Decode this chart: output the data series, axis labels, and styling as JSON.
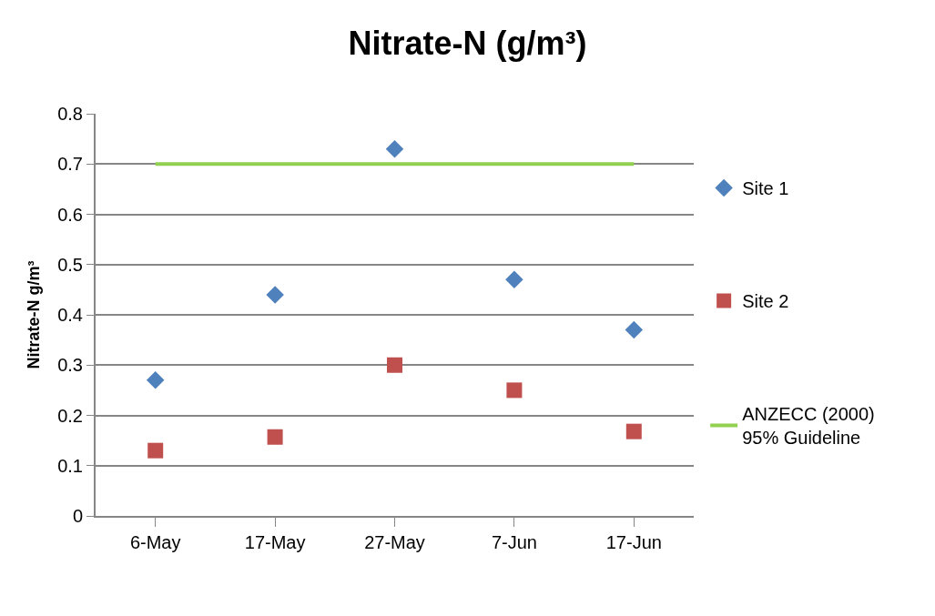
{
  "chart_data": {
    "type": "scatter",
    "title": "Nitrate-N (g/m³)",
    "ylabel": "Nitrate-N g/m³",
    "categories": [
      "6-May",
      "17-May",
      "27-May",
      "7-Jun",
      "17-Jun"
    ],
    "series": [
      {
        "name": "Site 1",
        "color": "#4f81bd",
        "marker": "diamond",
        "values": [
          0.27,
          0.44,
          0.73,
          0.47,
          0.37
        ]
      },
      {
        "name": "Site 2",
        "color": "#c0504d",
        "marker": "square",
        "values": [
          0.13,
          0.157,
          0.3,
          0.25,
          0.168
        ]
      },
      {
        "name": "ANZECC (2000) 95% Guideline",
        "type": "line",
        "color": "#92d050",
        "marker": "none",
        "line_style": "solid",
        "values": [
          0.7,
          0.7,
          0.7,
          0.7,
          0.7
        ]
      }
    ],
    "ylim": [
      0,
      0.8
    ],
    "yticks": [
      0,
      0.1,
      0.2,
      0.3,
      0.4,
      0.5,
      0.6,
      0.7,
      0.8
    ],
    "grid": "y",
    "legend": "right"
  }
}
